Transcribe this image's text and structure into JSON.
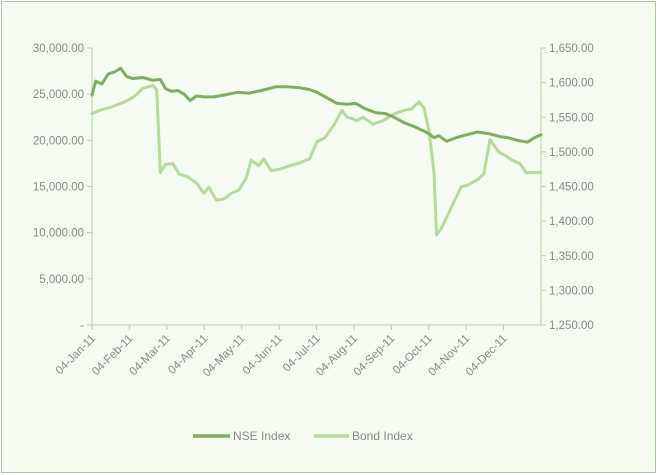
{
  "chart_data": {
    "type": "line",
    "title": "",
    "xlabel": "",
    "ylabel_left": "",
    "ylabel_right": "",
    "grid": false,
    "legend_position": "bottom",
    "xlim": [
      "2011-01-04",
      "2011-12-31"
    ],
    "ylim_left": [
      0,
      30000
    ],
    "ylim_right": [
      1250,
      1650
    ],
    "x_tick_labels": [
      "04-Jan-11",
      "04-Feb-11",
      "04-Mar-11",
      "04-Apr-11",
      "04-May-11",
      "04-Jun-11",
      "04-Jul-11",
      "04-Aug-11",
      "04-Sep-11",
      "04-Oct-11",
      "04-Nov-11",
      "04-Dec-11"
    ],
    "y_left_tick_labels": [
      "-",
      "5,000.00",
      "10,000.00",
      "15,000.00",
      "20,000.00",
      "25,000.00",
      "30,000.00"
    ],
    "y_left_tick_values": [
      0,
      5000,
      10000,
      15000,
      20000,
      25000,
      30000
    ],
    "y_right_tick_labels": [
      "1,250.00",
      "1,300.00",
      "1,350.00",
      "1,400.00",
      "1,450.00",
      "1,500.00",
      "1,550.00",
      "1,600.00",
      "1,650.00"
    ],
    "y_right_tick_values": [
      1250,
      1300,
      1350,
      1400,
      1450,
      1500,
      1550,
      1600,
      1650
    ],
    "series": [
      {
        "name": "NSE Index",
        "axis": "left",
        "color": "#7fae5e",
        "x": [
          "2011-01-04",
          "2011-01-07",
          "2011-01-12",
          "2011-01-17",
          "2011-01-22",
          "2011-01-27",
          "2011-02-01",
          "2011-02-06",
          "2011-02-14",
          "2011-02-22",
          "2011-02-28",
          "2011-03-04",
          "2011-03-09",
          "2011-03-14",
          "2011-03-19",
          "2011-03-24",
          "2011-03-29",
          "2011-04-04",
          "2011-04-12",
          "2011-04-20",
          "2011-05-01",
          "2011-05-10",
          "2011-05-20",
          "2011-06-01",
          "2011-06-10",
          "2011-06-20",
          "2011-06-28",
          "2011-07-04",
          "2011-07-12",
          "2011-07-20",
          "2011-07-28",
          "2011-08-04",
          "2011-08-12",
          "2011-08-20",
          "2011-08-28",
          "2011-09-04",
          "2011-09-12",
          "2011-09-20",
          "2011-09-28",
          "2011-10-02",
          "2011-10-06",
          "2011-10-10",
          "2011-10-16",
          "2011-10-24",
          "2011-11-01",
          "2011-11-10",
          "2011-11-20",
          "2011-11-28",
          "2011-12-04",
          "2011-12-12",
          "2011-12-20",
          "2011-12-26",
          "2011-12-31"
        ],
        "values": [
          24900,
          26400,
          26100,
          27200,
          27400,
          27800,
          26900,
          26700,
          26800,
          26500,
          26600,
          25600,
          25300,
          25400,
          25000,
          24300,
          24800,
          24700,
          24700,
          24900,
          25200,
          25100,
          25400,
          25800,
          25800,
          25700,
          25500,
          25200,
          24600,
          24000,
          23900,
          24000,
          23400,
          23000,
          22900,
          22500,
          21900,
          21500,
          21000,
          20700,
          20300,
          20500,
          19900,
          20300,
          20600,
          20900,
          20700,
          20400,
          20300,
          20000,
          19800,
          20300,
          20600
        ]
      },
      {
        "name": "Bond Index",
        "axis": "right",
        "color": "#b6d99c",
        "x": [
          "2011-01-04",
          "2011-01-10",
          "2011-01-20",
          "2011-01-30",
          "2011-02-07",
          "2011-02-14",
          "2011-02-22",
          "2011-02-25",
          "2011-02-28",
          "2011-03-04",
          "2011-03-10",
          "2011-03-15",
          "2011-03-22",
          "2011-03-29",
          "2011-04-04",
          "2011-04-08",
          "2011-04-14",
          "2011-04-20",
          "2011-04-26",
          "2011-05-02",
          "2011-05-08",
          "2011-05-12",
          "2011-05-18",
          "2011-05-22",
          "2011-05-28",
          "2011-06-04",
          "2011-06-12",
          "2011-06-20",
          "2011-06-28",
          "2011-07-04",
          "2011-07-10",
          "2011-07-18",
          "2011-07-24",
          "2011-07-28",
          "2011-08-01",
          "2011-08-05",
          "2011-08-10",
          "2011-08-18",
          "2011-08-26",
          "2011-09-04",
          "2011-09-12",
          "2011-09-18",
          "2011-09-24",
          "2011-09-28",
          "2011-10-02",
          "2011-10-06",
          "2011-10-08",
          "2011-10-12",
          "2011-10-20",
          "2011-10-28",
          "2011-11-02",
          "2011-11-10",
          "2011-11-15",
          "2011-11-20",
          "2011-11-23",
          "2011-11-27",
          "2011-12-02",
          "2011-12-08",
          "2011-12-14",
          "2011-12-19",
          "2011-12-31"
        ],
        "values": [
          1555,
          1560,
          1565,
          1572,
          1580,
          1592,
          1596,
          1590,
          1470,
          1482,
          1483,
          1468,
          1464,
          1455,
          1440,
          1449,
          1430,
          1432,
          1440,
          1445,
          1462,
          1488,
          1480,
          1490,
          1473,
          1475,
          1480,
          1484,
          1490,
          1515,
          1520,
          1540,
          1560,
          1550,
          1548,
          1545,
          1550,
          1540,
          1545,
          1555,
          1560,
          1562,
          1572,
          1563,
          1530,
          1470,
          1380,
          1390,
          1420,
          1450,
          1452,
          1460,
          1468,
          1518,
          1510,
          1500,
          1495,
          1488,
          1483,
          1470,
          1470
        ]
      }
    ]
  },
  "legend": {
    "nse_label": "NSE Index",
    "bond_label": "Bond Index"
  }
}
